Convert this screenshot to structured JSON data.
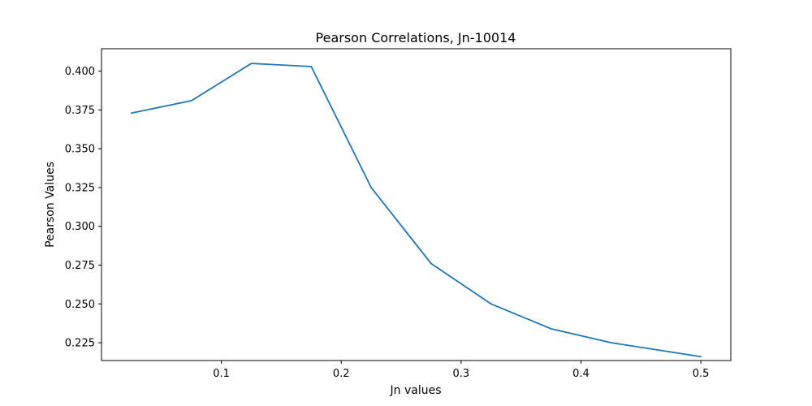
{
  "chart_data": {
    "type": "line",
    "title": "Pearson Correlations, Jn-10014",
    "xlabel": "Jn values",
    "ylabel": "Pearson Values",
    "xlim": [
      0.0,
      0.525
    ],
    "ylim": [
      0.2135,
      0.4145
    ],
    "xticks": [
      {
        "value": 0.1,
        "label": "0.1"
      },
      {
        "value": 0.2,
        "label": "0.2"
      },
      {
        "value": 0.3,
        "label": "0.3"
      },
      {
        "value": 0.4,
        "label": "0.4"
      },
      {
        "value": 0.5,
        "label": "0.5"
      }
    ],
    "yticks": [
      {
        "value": 0.225,
        "label": "0.225"
      },
      {
        "value": 0.25,
        "label": "0.250"
      },
      {
        "value": 0.275,
        "label": "0.275"
      },
      {
        "value": 0.3,
        "label": "0.300"
      },
      {
        "value": 0.325,
        "label": "0.325"
      },
      {
        "value": 0.35,
        "label": "0.350"
      },
      {
        "value": 0.375,
        "label": "0.375"
      },
      {
        "value": 0.4,
        "label": "0.400"
      }
    ],
    "grid": false,
    "series": [
      {
        "color": "#1f77b4",
        "x": [
          0.025,
          0.075,
          0.125,
          0.175,
          0.225,
          0.275,
          0.325,
          0.375,
          0.425,
          0.475,
          0.5
        ],
        "y": [
          0.373,
          0.381,
          0.405,
          0.403,
          0.325,
          0.276,
          0.25,
          0.234,
          0.225,
          0.219,
          0.216
        ]
      }
    ]
  }
}
